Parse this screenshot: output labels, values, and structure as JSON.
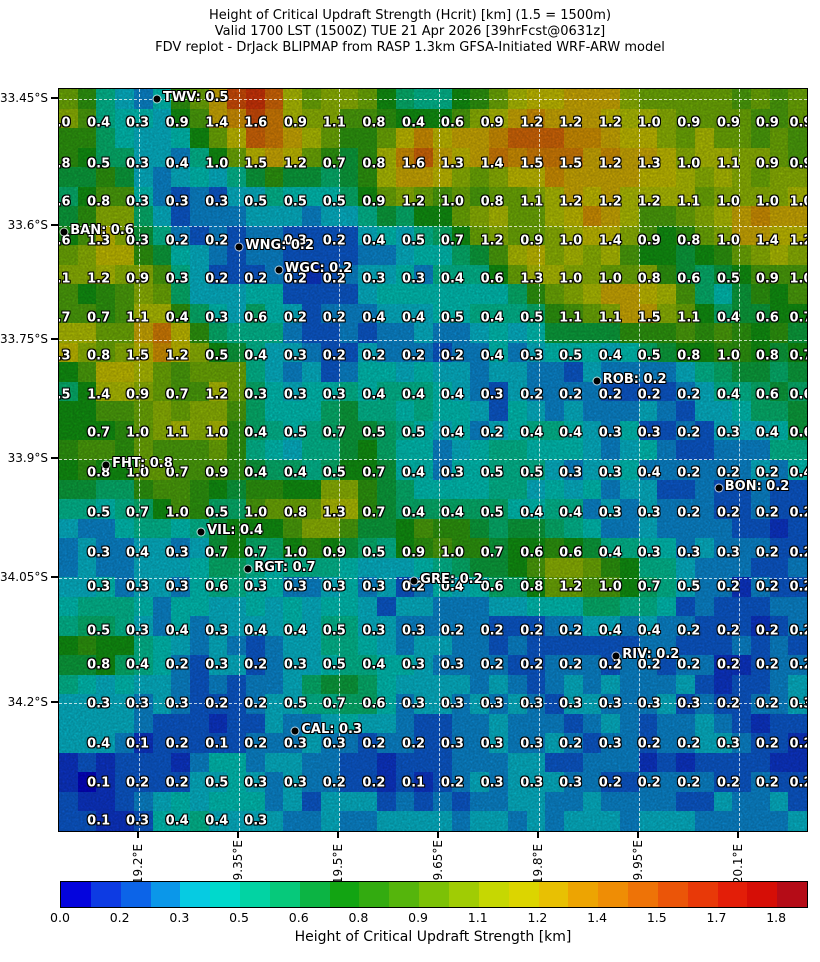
{
  "chart_data": {
    "type": "heatmap",
    "title_lines": {
      "l1": "Height of Critical Updraft Strength (Hcrit) [km] (1.5 = 1500m)",
      "l2": "Valid 1700 LST (1500Z) TUE 21 Apr 2026 [39hrFcst@0631z]",
      "l3": "FDV replot - DrJack BLIPMAP from RASP 1.3km GFSA-Initiated WRF-ARW model"
    },
    "axes": {
      "lat_ticks": [
        {
          "label": "33.45°S",
          "pct": 1.3
        },
        {
          "label": "33.6°S",
          "pct": 18.5
        },
        {
          "label": "33.75°S",
          "pct": 33.8
        },
        {
          "label": "33.9°S",
          "pct": 49.9
        },
        {
          "label": "34.05°S",
          "pct": 65.9
        },
        {
          "label": "34.2°S",
          "pct": 82.7
        }
      ],
      "lon_ticks": [
        {
          "label": "19.2°E",
          "pct": 10.7
        },
        {
          "label": "19.35°E",
          "pct": 24.1
        },
        {
          "label": "19.5°E",
          "pct": 37.4
        },
        {
          "label": "19.65°E",
          "pct": 50.8
        },
        {
          "label": "19.8°E",
          "pct": 64.2
        },
        {
          "label": "19.95°E",
          "pct": 77.5
        },
        {
          "label": "20.1°E",
          "pct": 90.9
        }
      ]
    },
    "grid": {
      "row_pcts": [
        4.6,
        10.1,
        15.2,
        20.5,
        25.6,
        30.9,
        36.0,
        41.2,
        46.4,
        51.8,
        57.1,
        62.5,
        67.1,
        73.0,
        77.6,
        82.9,
        88.3,
        93.5,
        98.65
      ],
      "col_pcts": [
        0,
        5.3,
        10.5,
        15.8,
        21.1,
        26.3,
        31.6,
        36.8,
        42.1,
        47.4,
        52.6,
        57.9,
        63.2,
        68.4,
        73.7,
        78.9,
        84.2,
        89.5,
        94.7,
        99.2
      ],
      "values": [
        [
          1.0,
          0.4,
          0.3,
          0.9,
          1.4,
          1.6,
          0.9,
          1.1,
          0.8,
          0.4,
          0.6,
          0.9,
          1.2,
          1.2,
          1.2,
          1.0,
          0.9,
          0.9,
          0.9,
          0.9
        ],
        [
          0.8,
          0.5,
          0.3,
          0.4,
          1.0,
          1.5,
          1.2,
          0.7,
          0.8,
          1.6,
          1.3,
          1.4,
          1.5,
          1.5,
          1.2,
          1.3,
          1.0,
          1.1,
          0.9,
          0.9
        ],
        [
          0.6,
          0.8,
          0.3,
          0.3,
          0.3,
          0.5,
          0.5,
          0.5,
          0.9,
          1.2,
          1.0,
          0.8,
          1.1,
          1.2,
          1.2,
          1.2,
          1.1,
          1.0,
          1.0,
          1.0
        ],
        [
          0.6,
          1.3,
          0.3,
          0.2,
          0.2,
          null,
          0.3,
          0.2,
          0.4,
          0.5,
          0.7,
          1.2,
          0.9,
          1.0,
          1.4,
          0.9,
          0.8,
          1.0,
          1.4,
          1.2
        ],
        [
          1.1,
          1.2,
          0.9,
          0.3,
          0.2,
          0.2,
          0.2,
          0.2,
          0.3,
          0.3,
          0.4,
          0.6,
          1.3,
          1.0,
          1.0,
          0.8,
          0.6,
          0.5,
          0.9,
          1.0
        ],
        [
          0.7,
          0.7,
          1.1,
          0.4,
          0.3,
          0.6,
          0.2,
          0.2,
          0.4,
          0.4,
          0.5,
          0.4,
          0.5,
          1.1,
          1.1,
          1.5,
          1.1,
          0.4,
          0.6,
          0.7
        ],
        [
          1.3,
          0.8,
          1.5,
          1.2,
          0.5,
          0.4,
          0.3,
          0.2,
          0.2,
          0.2,
          0.2,
          0.4,
          0.3,
          0.5,
          0.4,
          0.5,
          0.8,
          1.0,
          0.8,
          0.7
        ],
        [
          0.5,
          1.4,
          0.9,
          0.7,
          1.2,
          0.3,
          0.3,
          0.3,
          0.4,
          0.4,
          0.4,
          0.3,
          0.2,
          0.2,
          0.2,
          0.2,
          0.2,
          0.4,
          0.6,
          0.6
        ],
        [
          null,
          0.7,
          1.0,
          1.1,
          1.0,
          0.4,
          0.5,
          0.7,
          0.5,
          0.5,
          0.4,
          0.2,
          0.4,
          0.4,
          0.3,
          0.3,
          0.2,
          0.3,
          0.4,
          0.6
        ],
        [
          null,
          0.8,
          1.0,
          0.7,
          0.9,
          0.4,
          0.4,
          0.5,
          0.7,
          0.4,
          0.3,
          0.5,
          0.5,
          0.3,
          0.3,
          0.4,
          0.2,
          0.2,
          0.2,
          0.4
        ],
        [
          null,
          0.5,
          0.7,
          1.0,
          0.5,
          1.0,
          0.8,
          1.3,
          0.7,
          0.4,
          0.4,
          0.5,
          0.4,
          0.4,
          0.3,
          0.3,
          0.2,
          0.2,
          0.2,
          0.2
        ],
        [
          null,
          0.3,
          0.4,
          0.3,
          0.7,
          0.7,
          1.0,
          0.9,
          0.5,
          0.9,
          1.0,
          0.7,
          0.6,
          0.6,
          0.4,
          0.3,
          0.3,
          0.3,
          0.2,
          0.2
        ],
        [
          null,
          0.3,
          0.3,
          0.3,
          0.6,
          0.3,
          0.3,
          0.3,
          0.3,
          0.2,
          0.4,
          0.6,
          0.8,
          1.2,
          1.0,
          0.7,
          0.5,
          0.2,
          0.2,
          0.2
        ],
        [
          null,
          0.5,
          0.3,
          0.4,
          0.3,
          0.4,
          0.4,
          0.5,
          0.3,
          0.3,
          0.2,
          0.2,
          0.2,
          0.2,
          0.4,
          0.4,
          0.2,
          0.2,
          0.2,
          0.2
        ],
        [
          null,
          0.8,
          0.4,
          0.2,
          0.3,
          0.2,
          0.3,
          0.5,
          0.4,
          0.3,
          0.3,
          0.2,
          0.2,
          0.2,
          0.2,
          0.2,
          0.2,
          0.2,
          0.2,
          0.2
        ],
        [
          null,
          0.3,
          0.3,
          0.3,
          0.2,
          0.2,
          0.5,
          0.7,
          0.6,
          0.3,
          0.3,
          0.3,
          0.3,
          0.3,
          0.3,
          0.3,
          0.3,
          0.2,
          0.2,
          0.3
        ],
        [
          null,
          0.4,
          0.1,
          0.2,
          0.1,
          0.2,
          0.3,
          0.3,
          0.2,
          0.2,
          0.3,
          0.3,
          0.3,
          0.2,
          0.3,
          0.2,
          0.2,
          0.3,
          0.2,
          0.2
        ],
        [
          null,
          0.1,
          0.2,
          0.2,
          0.5,
          0.3,
          0.3,
          0.2,
          0.2,
          0.1,
          0.2,
          0.3,
          0.3,
          0.3,
          0.2,
          0.2,
          0.2,
          0.2,
          0.2,
          0.2
        ],
        [
          null,
          0.1,
          0.3,
          0.4,
          0.4,
          0.3,
          null,
          null,
          null,
          null,
          null,
          null,
          null,
          null,
          null,
          null,
          null,
          null,
          null,
          null
        ]
      ]
    },
    "stations": [
      {
        "name": "TWV",
        "value": 0.5,
        "label": "TWV: 0.5",
        "x_pct": 13.1,
        "y_pct": 1.4
      },
      {
        "name": "BAN",
        "value": 0.6,
        "label": "BAN: 0.6",
        "x_pct": 0.7,
        "y_pct": 19.3
      },
      {
        "name": "WNG",
        "value": 0.2,
        "label": "WNG: 0.2",
        "x_pct": 24.1,
        "y_pct": 21.3
      },
      {
        "name": "WGC",
        "value": 0.2,
        "label": "WGC: 0.2",
        "x_pct": 29.4,
        "y_pct": 24.4
      },
      {
        "name": "ROB",
        "value": 0.2,
        "label": "ROB: 0.2",
        "x_pct": 71.9,
        "y_pct": 39.4
      },
      {
        "name": "FHT",
        "value": 0.8,
        "label": "FHT: 0.8",
        "x_pct": 6.3,
        "y_pct": 50.7
      },
      {
        "name": "BON",
        "value": 0.2,
        "label": "BON: 0.2",
        "x_pct": 88.2,
        "y_pct": 53.8
      },
      {
        "name": "VIL",
        "value": 0.4,
        "label": "VIL: 0.4",
        "x_pct": 19.0,
        "y_pct": 59.7
      },
      {
        "name": "RGT",
        "value": 0.7,
        "label": "RGT: 0.7",
        "x_pct": 25.3,
        "y_pct": 64.7
      },
      {
        "name": "GRE",
        "value": 0.2,
        "label": "GRE: 0.2",
        "x_pct": 47.5,
        "y_pct": 66.3
      },
      {
        "name": "RIV",
        "value": 0.2,
        "label": "RIV: 0.2",
        "x_pct": 74.5,
        "y_pct": 76.4
      },
      {
        "name": "CAL",
        "value": 0.3,
        "label": "CAL: 0.3",
        "x_pct": 31.6,
        "y_pct": 86.5
      }
    ],
    "colorbar": {
      "label": "Height of Critical Updraft Strength [km]",
      "tick_labels": [
        "0.0",
        "0.2",
        "0.3",
        "0.5",
        "0.6",
        "0.8",
        "0.9",
        "1.1",
        "1.2",
        "1.4",
        "1.5",
        "1.7",
        "1.8"
      ],
      "tick_step_pct": 8,
      "range": [
        0.0,
        1.875
      ],
      "segment_step": 0.075,
      "colors": [
        "#0404dd",
        "#0d3be3",
        "#0c64e8",
        "#0b97e9",
        "#06cbe2",
        "#00d9cc",
        "#02d3a3",
        "#06c97b",
        "#0cb444",
        "#12a412",
        "#33ab10",
        "#55b50c",
        "#7cc106",
        "#a0cc04",
        "#c6d702",
        "#dcd500",
        "#e8c003",
        "#eda402",
        "#ef8d05",
        "#ee7307",
        "#eb5508",
        "#e83908",
        "#e31e08",
        "#d60e06",
        "#b50c17"
      ]
    },
    "value_text_color": "#ffffff",
    "value_outline_color": "#000000"
  }
}
